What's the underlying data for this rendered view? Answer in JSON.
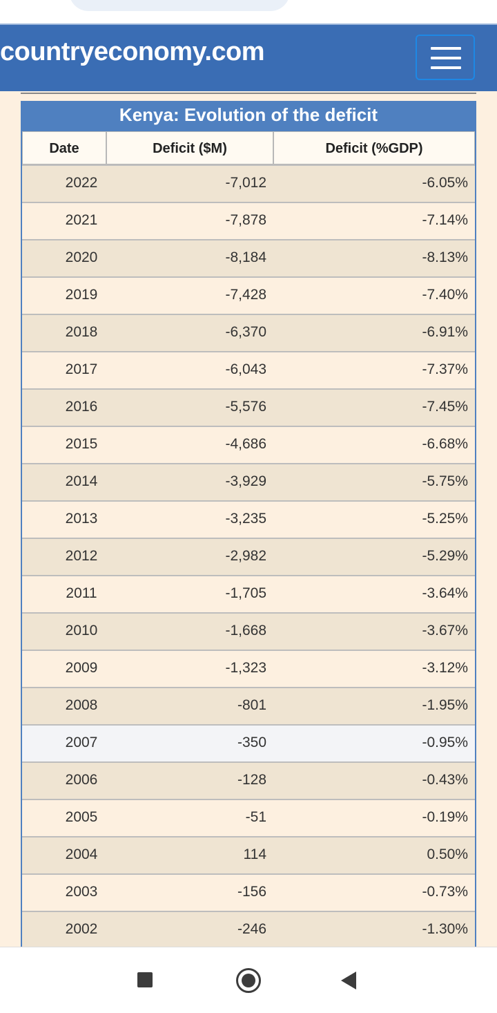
{
  "site": {
    "brand": "countryeconomy.com"
  },
  "table": {
    "caption": "Kenya: Evolution of the deficit",
    "headers": [
      "Date",
      "Deficit ($M)",
      "Deficit (%GDP)"
    ],
    "rows": [
      {
        "date": "2022",
        "deficit_m": "-7,012",
        "deficit_gdp": "-6.05%"
      },
      {
        "date": "2021",
        "deficit_m": "-7,878",
        "deficit_gdp": "-7.14%"
      },
      {
        "date": "2020",
        "deficit_m": "-8,184",
        "deficit_gdp": "-8.13%"
      },
      {
        "date": "2019",
        "deficit_m": "-7,428",
        "deficit_gdp": "-7.40%"
      },
      {
        "date": "2018",
        "deficit_m": "-6,370",
        "deficit_gdp": "-6.91%"
      },
      {
        "date": "2017",
        "deficit_m": "-6,043",
        "deficit_gdp": "-7.37%"
      },
      {
        "date": "2016",
        "deficit_m": "-5,576",
        "deficit_gdp": "-7.45%"
      },
      {
        "date": "2015",
        "deficit_m": "-4,686",
        "deficit_gdp": "-6.68%"
      },
      {
        "date": "2014",
        "deficit_m": "-3,929",
        "deficit_gdp": "-5.75%"
      },
      {
        "date": "2013",
        "deficit_m": "-3,235",
        "deficit_gdp": "-5.25%"
      },
      {
        "date": "2012",
        "deficit_m": "-2,982",
        "deficit_gdp": "-5.29%"
      },
      {
        "date": "2011",
        "deficit_m": "-1,705",
        "deficit_gdp": "-3.64%"
      },
      {
        "date": "2010",
        "deficit_m": "-1,668",
        "deficit_gdp": "-3.67%"
      },
      {
        "date": "2009",
        "deficit_m": "-1,323",
        "deficit_gdp": "-3.12%"
      },
      {
        "date": "2008",
        "deficit_m": "-801",
        "deficit_gdp": "-1.95%"
      },
      {
        "date": "2007",
        "deficit_m": "-350",
        "deficit_gdp": "-0.95%"
      },
      {
        "date": "2006",
        "deficit_m": "-128",
        "deficit_gdp": "-0.43%"
      },
      {
        "date": "2005",
        "deficit_m": "-51",
        "deficit_gdp": "-0.19%"
      },
      {
        "date": "2004",
        "deficit_m": "114",
        "deficit_gdp": "0.50%"
      },
      {
        "date": "2003",
        "deficit_m": "-156",
        "deficit_gdp": "-0.73%"
      },
      {
        "date": "2002",
        "deficit_m": "-246",
        "deficit_gdp": "-1.30%"
      }
    ]
  },
  "icons": {
    "menu": "hamburger-menu-icon",
    "nav_recent": "square-icon",
    "nav_home": "circle-home-icon",
    "nav_back": "triangle-back-icon"
  },
  "colors": {
    "header_bg": "#3a6db4",
    "caption_bg": "#4f80c0",
    "page_bg": "#fdf0e0",
    "row_alt_bg": "#efe4d2",
    "row_highlight_bg": "#f3f4f7"
  }
}
